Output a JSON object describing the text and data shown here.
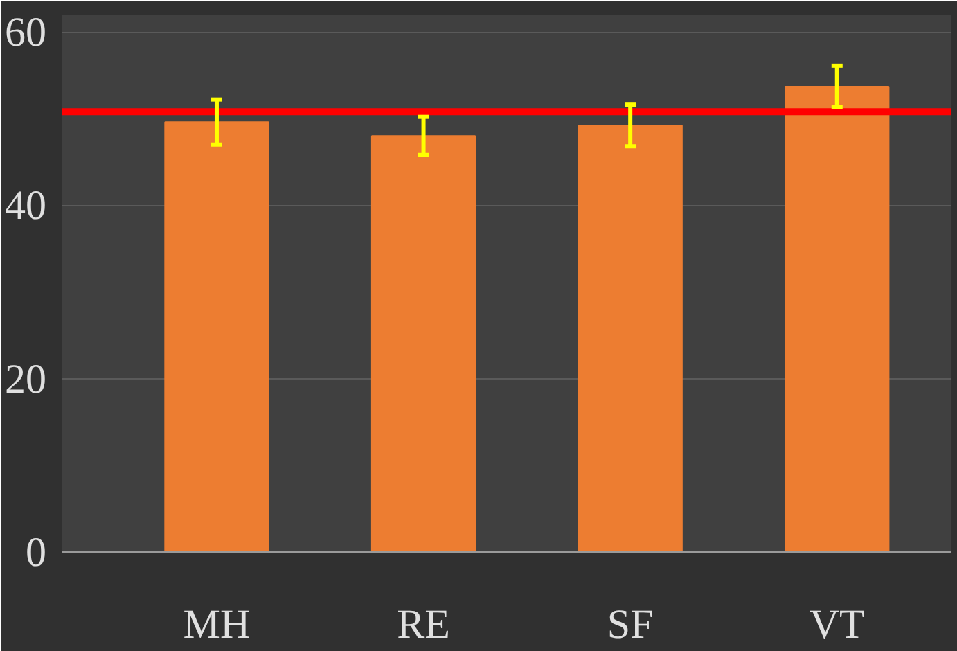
{
  "chart_data": {
    "type": "bar",
    "categories": [
      "MH",
      "RE",
      "SF",
      "VT"
    ],
    "values": [
      49.6,
      48.0,
      49.2,
      53.7
    ],
    "color": "#ed7d31",
    "errors": [
      2.6,
      2.2,
      2.4,
      2.4
    ],
    "ylim": [
      0,
      62
    ],
    "yticks": [
      0,
      20,
      40,
      60
    ],
    "grid": "y",
    "ref_lines": [
      {
        "axis": "y",
        "value": 50.8,
        "color": "#ff0000"
      }
    ]
  }
}
